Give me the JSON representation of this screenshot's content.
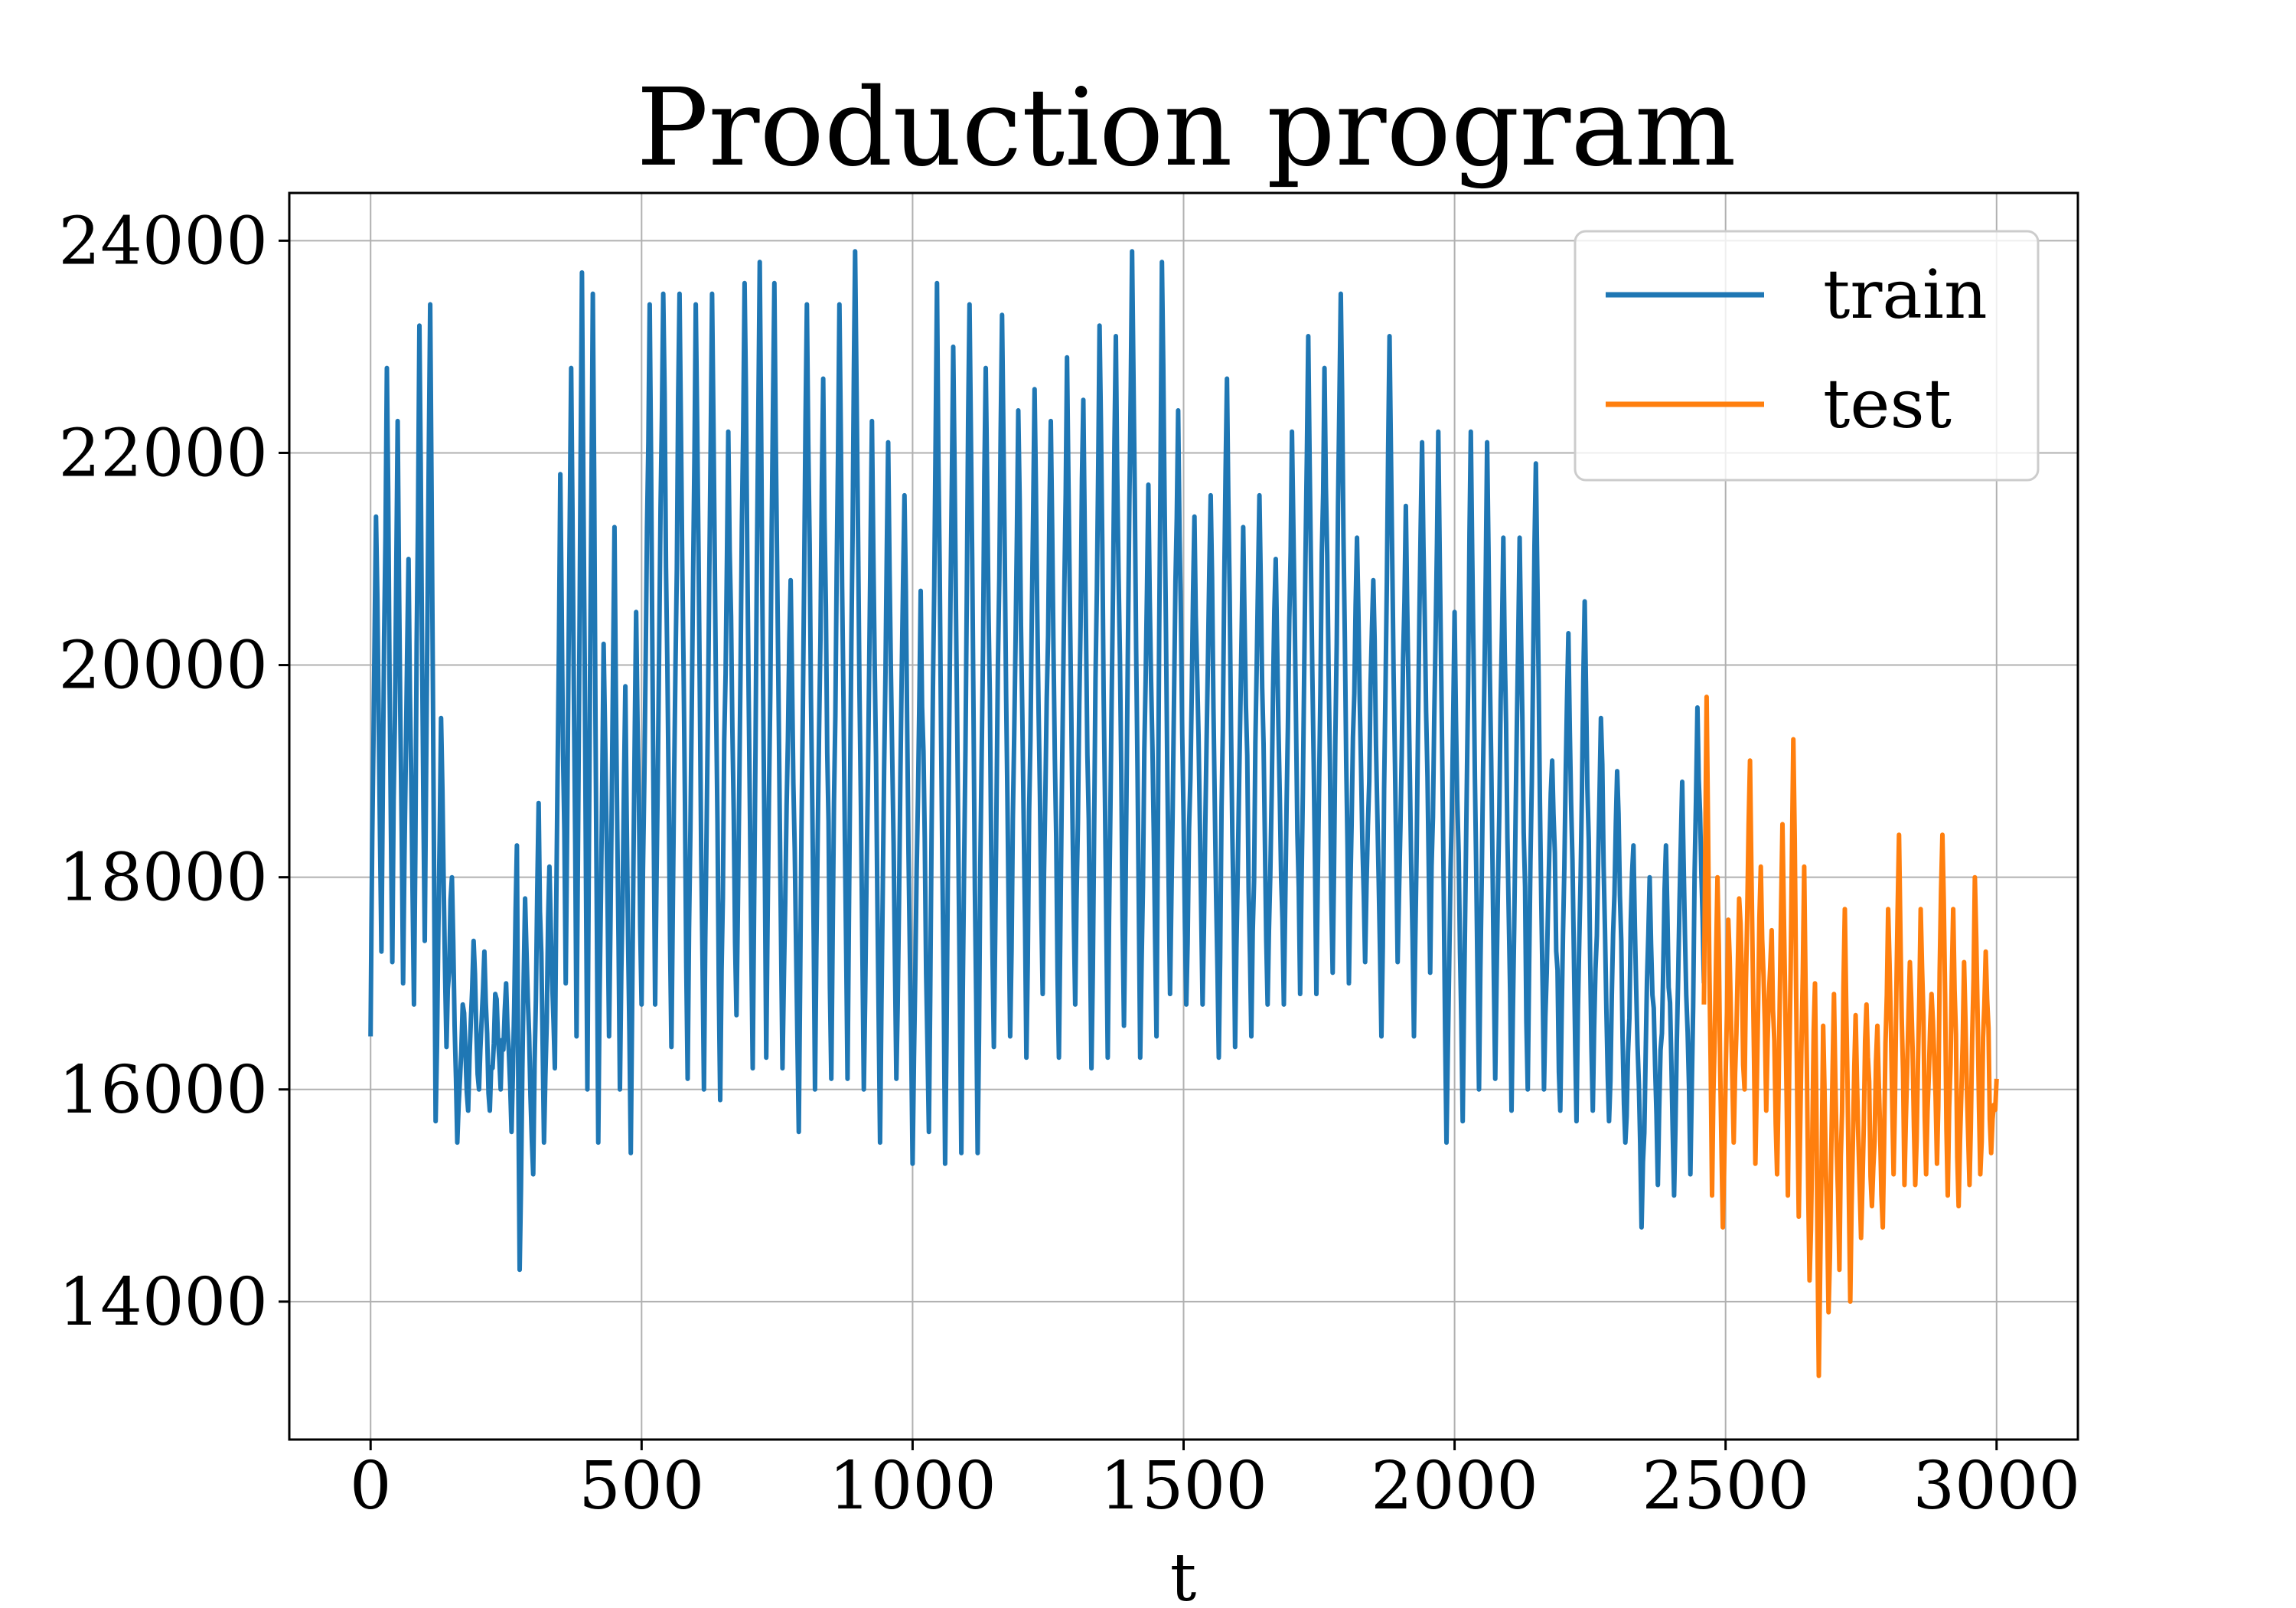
{
  "chart_data": {
    "type": "line",
    "title": "Production program",
    "xlabel": "t",
    "ylabel": "",
    "xlim": [
      -150,
      3150
    ],
    "ylim": [
      12700,
      24450
    ],
    "xticks": [
      0,
      500,
      1000,
      1500,
      2000,
      2500,
      3000
    ],
    "yticks": [
      14000,
      16000,
      18000,
      20000,
      22000,
      24000
    ],
    "grid": true,
    "legend_position": "top-right",
    "series": [
      {
        "name": "train",
        "color": "#1f77b4",
        "x_start": 0,
        "x_end": 2460,
        "anchors": [
          [
            0,
            16500
          ],
          [
            3,
            18400
          ],
          [
            10,
            21400
          ],
          [
            20,
            17300
          ],
          [
            30,
            22800
          ],
          [
            40,
            17200
          ],
          [
            50,
            22300
          ],
          [
            60,
            17000
          ],
          [
            70,
            21000
          ],
          [
            80,
            16800
          ],
          [
            90,
            23200
          ],
          [
            100,
            17400
          ],
          [
            110,
            23400
          ],
          [
            120,
            15700
          ],
          [
            130,
            19500
          ],
          [
            140,
            16400
          ],
          [
            150,
            18000
          ],
          [
            160,
            15500
          ],
          [
            170,
            16800
          ],
          [
            180,
            15800
          ],
          [
            190,
            17400
          ],
          [
            200,
            16000
          ],
          [
            210,
            17300
          ],
          [
            220,
            15800
          ],
          [
            230,
            16900
          ],
          [
            240,
            16000
          ],
          [
            250,
            17000
          ],
          [
            260,
            15600
          ],
          [
            270,
            18300
          ],
          [
            275,
            14300
          ],
          [
            285,
            17800
          ],
          [
            300,
            15200
          ],
          [
            310,
            18700
          ],
          [
            320,
            15500
          ],
          [
            330,
            18100
          ],
          [
            340,
            16200
          ],
          [
            350,
            21800
          ],
          [
            360,
            17000
          ],
          [
            370,
            22800
          ],
          [
            380,
            16500
          ],
          [
            390,
            23700
          ],
          [
            400,
            16000
          ],
          [
            410,
            23500
          ],
          [
            420,
            15500
          ],
          [
            430,
            20200
          ],
          [
            440,
            16500
          ],
          [
            450,
            21300
          ],
          [
            460,
            16000
          ],
          [
            470,
            19800
          ],
          [
            480,
            15400
          ],
          [
            490,
            20500
          ],
          [
            500,
            16800
          ],
          [
            515,
            23400
          ],
          [
            525,
            16800
          ],
          [
            540,
            23500
          ],
          [
            555,
            16400
          ],
          [
            570,
            23500
          ],
          [
            585,
            16100
          ],
          [
            600,
            23400
          ],
          [
            615,
            16000
          ],
          [
            630,
            23500
          ],
          [
            645,
            15900
          ],
          [
            660,
            22200
          ],
          [
            675,
            16700
          ],
          [
            690,
            23600
          ],
          [
            705,
            16200
          ],
          [
            718,
            23800
          ],
          [
            730,
            16300
          ],
          [
            745,
            23600
          ],
          [
            760,
            16200
          ],
          [
            775,
            20800
          ],
          [
            790,
            15600
          ],
          [
            805,
            23400
          ],
          [
            820,
            16000
          ],
          [
            835,
            22700
          ],
          [
            850,
            16100
          ],
          [
            865,
            23400
          ],
          [
            880,
            16100
          ],
          [
            894,
            23900
          ],
          [
            910,
            16000
          ],
          [
            925,
            22300
          ],
          [
            940,
            15500
          ],
          [
            955,
            22100
          ],
          [
            970,
            16100
          ],
          [
            985,
            21600
          ],
          [
            1000,
            15300
          ],
          [
            1015,
            20700
          ],
          [
            1030,
            15600
          ],
          [
            1045,
            23600
          ],
          [
            1060,
            15300
          ],
          [
            1075,
            23000
          ],
          [
            1090,
            15400
          ],
          [
            1105,
            23400
          ],
          [
            1120,
            15400
          ],
          [
            1135,
            22800
          ],
          [
            1150,
            16400
          ],
          [
            1165,
            23300
          ],
          [
            1180,
            16500
          ],
          [
            1195,
            22400
          ],
          [
            1210,
            16300
          ],
          [
            1225,
            22600
          ],
          [
            1240,
            16900
          ],
          [
            1255,
            22300
          ],
          [
            1270,
            16300
          ],
          [
            1285,
            22900
          ],
          [
            1300,
            16800
          ],
          [
            1315,
            22500
          ],
          [
            1330,
            16200
          ],
          [
            1345,
            23200
          ],
          [
            1360,
            16300
          ],
          [
            1375,
            23100
          ],
          [
            1390,
            16600
          ],
          [
            1405,
            23900
          ],
          [
            1420,
            16300
          ],
          [
            1435,
            21700
          ],
          [
            1450,
            16500
          ],
          [
            1460,
            23800
          ],
          [
            1475,
            16900
          ],
          [
            1490,
            22400
          ],
          [
            1505,
            16800
          ],
          [
            1520,
            21400
          ],
          [
            1535,
            16800
          ],
          [
            1550,
            21600
          ],
          [
            1565,
            16300
          ],
          [
            1580,
            22700
          ],
          [
            1595,
            16400
          ],
          [
            1610,
            21300
          ],
          [
            1625,
            16500
          ],
          [
            1640,
            21600
          ],
          [
            1655,
            16800
          ],
          [
            1670,
            21000
          ],
          [
            1685,
            16800
          ],
          [
            1700,
            22200
          ],
          [
            1715,
            16900
          ],
          [
            1730,
            23100
          ],
          [
            1745,
            16900
          ],
          [
            1760,
            22800
          ],
          [
            1775,
            17100
          ],
          [
            1790,
            23500
          ],
          [
            1805,
            17000
          ],
          [
            1820,
            21200
          ],
          [
            1835,
            17200
          ],
          [
            1850,
            20800
          ],
          [
            1865,
            16500
          ],
          [
            1880,
            23100
          ],
          [
            1895,
            17200
          ],
          [
            1910,
            21500
          ],
          [
            1925,
            16500
          ],
          [
            1940,
            22100
          ],
          [
            1955,
            17100
          ],
          [
            1970,
            22200
          ],
          [
            1985,
            15500
          ],
          [
            2000,
            20500
          ],
          [
            2015,
            15700
          ],
          [
            2030,
            22200
          ],
          [
            2045,
            16000
          ],
          [
            2060,
            22100
          ],
          [
            2075,
            16100
          ],
          [
            2090,
            21200
          ],
          [
            2105,
            15800
          ],
          [
            2120,
            21200
          ],
          [
            2135,
            16000
          ],
          [
            2150,
            21900
          ],
          [
            2165,
            16000
          ],
          [
            2180,
            19100
          ],
          [
            2195,
            15800
          ],
          [
            2210,
            20300
          ],
          [
            2225,
            15700
          ],
          [
            2240,
            20600
          ],
          [
            2255,
            15800
          ],
          [
            2270,
            19500
          ],
          [
            2285,
            15700
          ],
          [
            2300,
            19000
          ],
          [
            2315,
            15500
          ],
          [
            2330,
            18300
          ],
          [
            2345,
            14700
          ],
          [
            2360,
            18000
          ],
          [
            2375,
            15100
          ],
          [
            2390,
            18300
          ],
          [
            2405,
            15000
          ],
          [
            2420,
            18900
          ],
          [
            2435,
            15200
          ],
          [
            2448,
            19600
          ],
          [
            2460,
            17000
          ]
        ]
      },
      {
        "name": "test",
        "color": "#ff7f0e",
        "x_start": 2460,
        "x_end": 3000,
        "anchors": [
          [
            2460,
            16800
          ],
          [
            2465,
            19700
          ],
          [
            2475,
            15000
          ],
          [
            2485,
            18000
          ],
          [
            2495,
            14700
          ],
          [
            2505,
            17600
          ],
          [
            2515,
            15500
          ],
          [
            2525,
            17800
          ],
          [
            2535,
            16000
          ],
          [
            2545,
            19100
          ],
          [
            2555,
            15300
          ],
          [
            2565,
            18100
          ],
          [
            2575,
            15800
          ],
          [
            2585,
            17500
          ],
          [
            2595,
            15200
          ],
          [
            2605,
            18500
          ],
          [
            2615,
            15000
          ],
          [
            2625,
            19300
          ],
          [
            2635,
            14800
          ],
          [
            2645,
            18100
          ],
          [
            2655,
            14200
          ],
          [
            2665,
            17000
          ],
          [
            2672,
            13300
          ],
          [
            2680,
            16600
          ],
          [
            2690,
            13900
          ],
          [
            2700,
            16900
          ],
          [
            2710,
            14300
          ],
          [
            2720,
            17700
          ],
          [
            2730,
            14000
          ],
          [
            2740,
            16700
          ],
          [
            2750,
            14600
          ],
          [
            2760,
            16800
          ],
          [
            2770,
            14900
          ],
          [
            2780,
            16600
          ],
          [
            2790,
            14700
          ],
          [
            2800,
            17700
          ],
          [
            2810,
            15200
          ],
          [
            2820,
            18400
          ],
          [
            2830,
            15100
          ],
          [
            2840,
            17200
          ],
          [
            2850,
            15100
          ],
          [
            2860,
            17700
          ],
          [
            2870,
            15200
          ],
          [
            2880,
            16900
          ],
          [
            2890,
            15300
          ],
          [
            2900,
            18400
          ],
          [
            2910,
            15000
          ],
          [
            2920,
            17700
          ],
          [
            2930,
            14900
          ],
          [
            2940,
            17200
          ],
          [
            2950,
            15100
          ],
          [
            2960,
            18000
          ],
          [
            2970,
            15200
          ],
          [
            2980,
            17300
          ],
          [
            2990,
            15400
          ],
          [
            3000,
            16100
          ]
        ]
      }
    ]
  }
}
